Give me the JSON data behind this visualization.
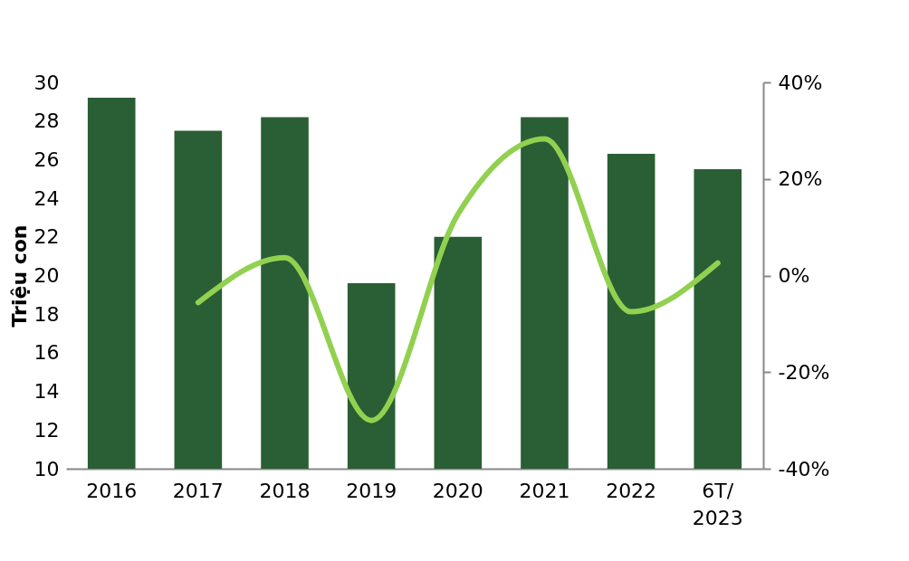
{
  "chart_data": {
    "type": "bar",
    "ylabel": "Triệu con",
    "categories": [
      "2016",
      "2017",
      "2018",
      "2019",
      "2020",
      "2021",
      "2022",
      "6T/ 2023"
    ],
    "series": [
      {
        "color": "#2a5e34",
        "values": [
          29.2,
          27.5,
          28.2,
          19.6,
          22.0,
          28.2,
          26.3,
          25.5
        ]
      },
      {
        "type": "line",
        "axis": "y2",
        "color": "#92d050",
        "values": [
          null,
          -5.6,
          3.7,
          -30,
          12.7,
          28.3,
          -7.5,
          2.6
        ]
      }
    ],
    "ylim": [
      10,
      30
    ],
    "yticks": [
      10,
      12,
      14,
      16,
      18,
      20,
      22,
      24,
      26,
      28,
      30
    ],
    "y2lim": [
      -40,
      40
    ],
    "y2ticks": [
      {
        "value": -40,
        "label": "-40%"
      },
      {
        "value": -20,
        "label": "-20%"
      },
      {
        "value": 0,
        "label": "0%"
      },
      {
        "value": 20,
        "label": "20%"
      },
      {
        "value": 40,
        "label": "40%"
      }
    ],
    "grid": false,
    "marker": "none",
    "line_style": "solid"
  }
}
